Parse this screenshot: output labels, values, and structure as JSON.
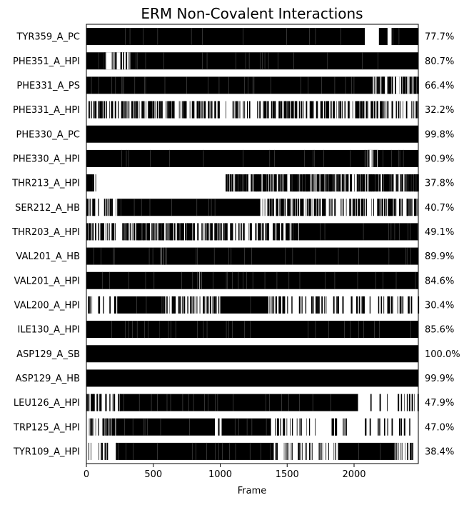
{
  "chart_data": {
    "type": "heatmap",
    "title": "ERM Non-Covalent Interactions",
    "xlabel": "Frame",
    "ylabel": "",
    "xlim": [
      0,
      2480
    ],
    "xticks": [
      0,
      500,
      1000,
      1500,
      2000
    ],
    "grid": false,
    "legend": "none",
    "colors": {
      "present": "#000000",
      "absent": "#ffffff"
    },
    "rows": [
      {
        "label": "TYR359_A_PC",
        "percent": "77.7%",
        "occupancy": 0.777,
        "solid": [
          [
            0,
            2080
          ],
          [
            2185,
            2250
          ],
          [
            2280,
            2480
          ]
        ],
        "sparse": [
          [
            2080,
            2185,
            0.0
          ]
        ]
      },
      {
        "label": "PHE351_A_HPI",
        "percent": "80.7%",
        "occupancy": 0.807,
        "solid": [
          [
            0,
            2480
          ]
        ],
        "sparse": [
          [
            130,
            330,
            0.4
          ]
        ]
      },
      {
        "label": "PHE331_A_PS",
        "percent": "66.4%",
        "occupancy": 0.664,
        "solid": [
          [
            0,
            2480
          ]
        ],
        "sparse": [
          [
            2140,
            2480,
            0.45
          ]
        ]
      },
      {
        "label": "PHE331_A_HPI",
        "percent": "32.2%",
        "occupancy": 0.322,
        "solid": [],
        "sparse": [
          [
            0,
            2480,
            0.32
          ]
        ]
      },
      {
        "label": "PHE330_A_PC",
        "percent": "99.8%",
        "occupancy": 0.998,
        "solid": [
          [
            0,
            2480
          ]
        ],
        "sparse": []
      },
      {
        "label": "PHE330_A_HPI",
        "percent": "90.9%",
        "occupancy": 0.909,
        "solid": [
          [
            0,
            2480
          ]
        ],
        "sparse": [
          [
            2100,
            2180,
            0.5
          ]
        ]
      },
      {
        "label": "THR213_A_HPI",
        "percent": "37.8%",
        "occupancy": 0.378,
        "solid": [
          [
            0,
            40
          ],
          [
            1040,
            2480
          ]
        ],
        "sparse": [
          [
            40,
            70,
            0.3
          ],
          [
            1040,
            2480,
            0.7
          ]
        ]
      },
      {
        "label": "SER212_A_HB",
        "percent": "40.7%",
        "occupancy": 0.407,
        "solid": [
          [
            230,
            1300
          ]
        ],
        "sparse": [
          [
            0,
            230,
            0.35
          ],
          [
            1300,
            2480,
            0.35
          ]
        ]
      },
      {
        "label": "THR203_A_HPI",
        "percent": "49.1%",
        "occupancy": 0.491,
        "solid": [
          [
            1600,
            2480
          ]
        ],
        "sparse": [
          [
            0,
            1600,
            0.45
          ]
        ]
      },
      {
        "label": "VAL201_A_HB",
        "percent": "89.9%",
        "occupancy": 0.899,
        "solid": [
          [
            0,
            2480
          ]
        ],
        "sparse": [
          [
            550,
            600,
            0.5
          ]
        ]
      },
      {
        "label": "VAL201_A_HPI",
        "percent": "84.6%",
        "occupancy": 0.846,
        "solid": [
          [
            0,
            2480
          ]
        ],
        "sparse": [
          [
            840,
            860,
            0.5
          ]
        ]
      },
      {
        "label": "VAL200_A_HPI",
        "percent": "30.4%",
        "occupancy": 0.304,
        "solid": [
          [
            230,
            590
          ],
          [
            1000,
            1360
          ]
        ],
        "sparse": [
          [
            0,
            230,
            0.25
          ],
          [
            590,
            1000,
            0.3
          ],
          [
            1360,
            2480,
            0.2
          ]
        ]
      },
      {
        "label": "ILE130_A_HPI",
        "percent": "85.6%",
        "occupancy": 0.856,
        "solid": [
          [
            0,
            2480
          ]
        ],
        "sparse": [
          [
            545,
            560,
            0.5
          ]
        ]
      },
      {
        "label": "ASP129_A_SB",
        "percent": "100.0%",
        "occupancy": 1.0,
        "solid": [
          [
            0,
            2480
          ]
        ],
        "sparse": []
      },
      {
        "label": "ASP129_A_HB",
        "percent": "99.9%",
        "occupancy": 0.999,
        "solid": [
          [
            0,
            2480
          ]
        ],
        "sparse": []
      },
      {
        "label": "LEU126_A_HPI",
        "percent": "47.9%",
        "occupancy": 0.479,
        "solid": [
          [
            250,
            2030
          ]
        ],
        "sparse": [
          [
            0,
            250,
            0.4
          ],
          [
            2030,
            2480,
            0.12
          ]
        ]
      },
      {
        "label": "TRP125_A_HPI",
        "percent": "47.0%",
        "occupancy": 0.47,
        "solid": [
          [
            220,
            960
          ],
          [
            1010,
            1380
          ]
        ],
        "sparse": [
          [
            0,
            220,
            0.4
          ],
          [
            960,
            1010,
            0.2
          ],
          [
            1380,
            2480,
            0.15
          ]
        ]
      },
      {
        "label": "TYR109_A_HPI",
        "percent": "38.4%",
        "occupancy": 0.384,
        "solid": [
          [
            240,
            1400
          ],
          [
            1880,
            2300
          ]
        ],
        "sparse": [
          [
            0,
            240,
            0.15
          ],
          [
            1400,
            1880,
            0.2
          ],
          [
            2300,
            2480,
            0.3
          ]
        ]
      }
    ]
  }
}
